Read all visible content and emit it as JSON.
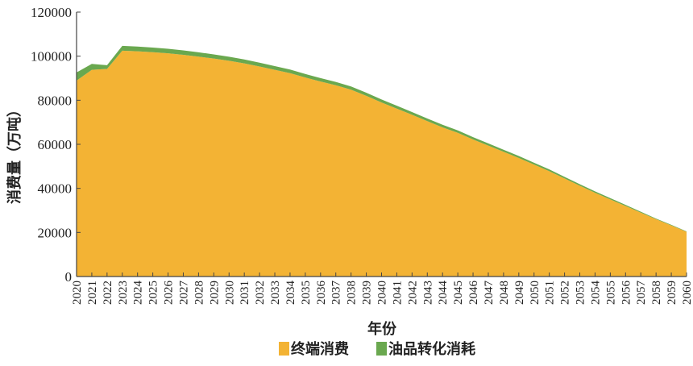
{
  "chart_data": {
    "type": "area",
    "stacked": true,
    "title": "",
    "xlabel": "年份",
    "ylabel": "消费量（万吨）",
    "ylim": [
      0,
      120000
    ],
    "yticks": [
      0,
      20000,
      40000,
      60000,
      80000,
      100000,
      120000
    ],
    "grid": false,
    "legend_position": "bottom",
    "x": [
      2020,
      2021,
      2022,
      2023,
      2024,
      2025,
      2026,
      2027,
      2028,
      2029,
      2030,
      2031,
      2032,
      2033,
      2034,
      2035,
      2036,
      2037,
      2038,
      2039,
      2040,
      2041,
      2042,
      2043,
      2044,
      2045,
      2046,
      2047,
      2048,
      2049,
      2050,
      2051,
      2052,
      2053,
      2054,
      2055,
      2056,
      2057,
      2058,
      2059,
      2060
    ],
    "series": [
      {
        "name": "终端消费",
        "color": "#F3B334",
        "values": [
          88900,
          93800,
          94200,
          102500,
          102200,
          101800,
          101300,
          100600,
          99800,
          98900,
          97900,
          96700,
          95300,
          93800,
          92300,
          90300,
          88500,
          86800,
          84800,
          82000,
          79000,
          76200,
          73400,
          70500,
          67700,
          65200,
          62200,
          59400,
          56600,
          53800,
          50800,
          47800,
          44500,
          41200,
          38000,
          35000,
          32000,
          29000,
          26000,
          23200,
          20300
        ]
      },
      {
        "name": "油品转化消耗",
        "color": "#6AA84F",
        "values": [
          3700,
          2700,
          1700,
          2200,
          2150,
          2100,
          2050,
          2000,
          1950,
          1900,
          1850,
          1800,
          1750,
          1700,
          1650,
          1600,
          1550,
          1500,
          1450,
          1400,
          1350,
          1300,
          1250,
          1200,
          1150,
          1100,
          1050,
          1000,
          950,
          900,
          850,
          800,
          750,
          700,
          650,
          600,
          500,
          400,
          300,
          250,
          200
        ]
      }
    ]
  }
}
